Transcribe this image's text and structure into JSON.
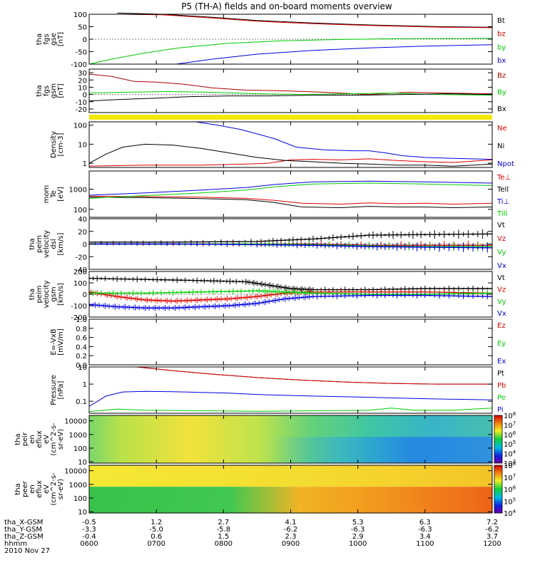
{
  "title": "P5 (TH-A) fields and on-board moments overview",
  "chart_data": [
    {
      "type": "line",
      "id": "fgs_gse",
      "ylabel": [
        "tha",
        "fgs",
        "gse",
        "[nT]"
      ],
      "ylim": [
        -100,
        100
      ],
      "yticks": [
        -100,
        -50,
        0,
        50,
        100
      ],
      "series": [
        {
          "name": "Bt",
          "color": "#000000",
          "x": [
            0.5,
            1.3,
            2.2,
            3.0,
            4.0,
            5.0,
            6.3,
            7.2
          ],
          "y": [
            105,
            100,
            88,
            75,
            65,
            57,
            50,
            48
          ]
        },
        {
          "name": "bz",
          "color": "#dd0000",
          "x": [
            0.5,
            1.3,
            2.2,
            3.0,
            4.0,
            5.0,
            6.3,
            7.2
          ],
          "y": [
            100,
            98,
            85,
            72,
            62,
            55,
            48,
            46
          ]
        },
        {
          "name": "by",
          "color": "#00cc00",
          "x": [
            0.0,
            0.4,
            1.0,
            1.6,
            2.4,
            3.4,
            4.5,
            5.5,
            7.2
          ],
          "y": [
            -100,
            -80,
            -55,
            -35,
            -18,
            -7,
            -1,
            2,
            3
          ]
        },
        {
          "name": "bx",
          "color": "#0000dd",
          "x": [
            1.55,
            2.2,
            3.0,
            4.0,
            5.0,
            6.0,
            7.2
          ],
          "y": [
            -100,
            -80,
            -60,
            -45,
            -35,
            -28,
            -22
          ]
        }
      ]
    },
    {
      "type": "line",
      "id": "fgs_gsm",
      "ylabel": [
        "tha",
        "fgs",
        "gsm",
        "[nT]"
      ],
      "ylim": [
        -25,
        35
      ],
      "yticks": [
        -20,
        -10,
        0,
        10,
        20,
        30
      ],
      "series": [
        {
          "name": "Bz",
          "color": "#aa0000",
          "x": [
            0,
            0.4,
            0.8,
            1.2,
            1.7,
            2.2,
            2.8,
            3.5,
            4.2,
            5.0,
            5.7,
            6.4,
            7.2
          ],
          "y": [
            28,
            25,
            18,
            17,
            14,
            9,
            6,
            5,
            3,
            0,
            3,
            2,
            1
          ]
        },
        {
          "name": "By",
          "color": "#00cc00",
          "x": [
            0,
            0.6,
            1.4,
            2.2,
            3.0,
            3.8,
            4.6,
            5.4,
            6.2,
            7.2
          ],
          "y": [
            2,
            3,
            4,
            3,
            1,
            0,
            1,
            2,
            0,
            -1
          ]
        },
        {
          "name": "Bx",
          "color": "#000000",
          "x": [
            0,
            0.5,
            1.2,
            1.8,
            2.5,
            3.2,
            4.0,
            4.8,
            5.6,
            6.4,
            7.2
          ],
          "y": [
            -9,
            -7,
            -5,
            -3,
            -2,
            -2,
            -1,
            -1,
            0,
            1,
            0
          ]
        }
      ]
    },
    {
      "type": "line",
      "id": "density",
      "ylabel": [
        "Density",
        "[cm-3]"
      ],
      "log": true,
      "ylim": [
        0.6,
        150
      ],
      "yticks": [
        1,
        10,
        100
      ],
      "series": [
        {
          "name": "Ne",
          "color": "#dd0000",
          "x": [
            0,
            1.0,
            2.0,
            2.8,
            3.2,
            3.6,
            4.0,
            4.5,
            5.0,
            5.5,
            6.0,
            6.5,
            7.2
          ],
          "y": [
            0.7,
            0.8,
            0.8,
            0.9,
            1.0,
            1.5,
            1.6,
            1.5,
            1.7,
            1.4,
            1.2,
            1.1,
            1.5
          ]
        },
        {
          "name": "Ni",
          "color": "#000000",
          "x": [
            0,
            0.3,
            0.6,
            1.0,
            1.5,
            2.0,
            2.5,
            3.0,
            3.5,
            4.0,
            4.5,
            5.0,
            5.5,
            6.0,
            6.5,
            7.2
          ],
          "y": [
            1,
            3,
            7,
            10,
            9,
            6,
            3.5,
            2,
            1.4,
            1.2,
            1.0,
            0.9,
            0.8,
            0.8,
            0.7,
            0.9
          ]
        },
        {
          "name": "Npot",
          "color": "#0000dd",
          "x": [
            1.9,
            2.3,
            2.7,
            3.0,
            3.3,
            3.7,
            4.2,
            4.7,
            5.0,
            5.3,
            5.6,
            6.0,
            6.5,
            7.2
          ],
          "y": [
            150,
            100,
            60,
            35,
            20,
            7,
            5,
            4.5,
            4.5,
            3.5,
            2.5,
            2,
            1.8,
            1.6
          ]
        }
      ]
    },
    {
      "type": "line",
      "id": "mom_temp",
      "ylabel": [
        "mom",
        "Te",
        "[eV]"
      ],
      "log": true,
      "ylim": [
        40,
        8000
      ],
      "yticks": [
        100,
        1000
      ],
      "series": [
        {
          "name": "Te⊥",
          "color": "#dd0000",
          "x": [
            0,
            1.0,
            2.0,
            2.8,
            3.3,
            3.8,
            4.5,
            5.0,
            5.5,
            6.0,
            6.5,
            7.2
          ],
          "y": [
            450,
            430,
            400,
            350,
            280,
            200,
            180,
            210,
            190,
            200,
            180,
            200
          ]
        },
        {
          "name": "Tell",
          "color": "#000000",
          "x": [
            0,
            1.0,
            2.0,
            2.8,
            3.3,
            3.8,
            4.5,
            5.0,
            5.5,
            6.0,
            6.5,
            7.2
          ],
          "y": [
            400,
            380,
            340,
            300,
            220,
            130,
            120,
            140,
            130,
            130,
            120,
            130
          ]
        },
        {
          "name": "Ti⊥",
          "color": "#0000dd",
          "x": [
            0,
            1.0,
            2.0,
            2.8,
            3.3,
            4.0,
            5.0,
            6.0,
            7.2
          ],
          "y": [
            500,
            650,
            900,
            1200,
            1700,
            2300,
            2500,
            2300,
            2000
          ]
        },
        {
          "name": "Till",
          "color": "#00cc00",
          "x": [
            0,
            1.0,
            2.0,
            2.8,
            3.3,
            4.0,
            5.0,
            6.0,
            7.2
          ],
          "y": [
            350,
            480,
            650,
            900,
            1300,
            1800,
            2000,
            1800,
            1500
          ]
        }
      ]
    },
    {
      "type": "line",
      "id": "peim_velocity_dsl",
      "ylabel": [
        "tha",
        "peim",
        "velocity",
        "dsl",
        "[km/s]"
      ],
      "ylim": [
        -40,
        40
      ],
      "yticks": [
        -40,
        -20,
        0,
        20,
        40
      ],
      "series": [
        {
          "name": "Vt",
          "color": "#000000",
          "x": [
            0,
            1.5,
            3.0,
            4.0,
            5.0,
            6.0,
            7.2
          ],
          "y": [
            3,
            3,
            4,
            8,
            14,
            15,
            16
          ]
        },
        {
          "name": "Vz",
          "color": "#dd0000",
          "x": [
            0,
            1.5,
            3.0,
            4.0,
            5.0,
            6.0,
            7.2
          ],
          "y": [
            0,
            0,
            0,
            0,
            -2,
            -2,
            -2
          ]
        },
        {
          "name": "Vy",
          "color": "#00cc00",
          "x": [
            0,
            1.5,
            3.0,
            4.0,
            5.0,
            6.0,
            7.2
          ],
          "y": [
            0,
            0,
            0,
            -1,
            -3,
            -4,
            -4
          ]
        },
        {
          "name": "Vx",
          "color": "#0000dd",
          "x": [
            0,
            1.5,
            3.0,
            4.0,
            5.0,
            6.0,
            7.2
          ],
          "y": [
            0,
            0,
            -1,
            -2,
            -4,
            -5,
            -6
          ]
        }
      ]
    },
    {
      "type": "line",
      "id": "peim_velocity_gsm",
      "ylabel": [
        "tha",
        "peim",
        "velocity",
        "gsm",
        "[km/s]"
      ],
      "ylim": [
        -200,
        200
      ],
      "yticks": [
        -200,
        -100,
        0,
        100,
        200
      ],
      "series": [
        {
          "name": "Vt",
          "color": "#000000",
          "x": [
            0,
            1.0,
            2.0,
            2.8,
            3.2,
            3.6,
            4.0,
            5.0,
            6.0,
            7.2
          ],
          "y": [
            140,
            130,
            120,
            110,
            80,
            50,
            40,
            40,
            50,
            50
          ]
        },
        {
          "name": "Vz",
          "color": "#dd0000",
          "x": [
            0,
            0.5,
            1.0,
            1.5,
            2.0,
            2.5,
            3.0,
            3.5,
            4.0,
            5.0,
            6.0,
            7.2
          ],
          "y": [
            20,
            -20,
            -50,
            -60,
            -50,
            -40,
            -20,
            10,
            20,
            20,
            20,
            10
          ]
        },
        {
          "name": "Vy",
          "color": "#00cc00",
          "x": [
            0,
            1.0,
            2.0,
            3.0,
            3.5,
            4.0,
            5.0,
            6.0,
            7.2
          ],
          "y": [
            10,
            10,
            20,
            30,
            20,
            10,
            0,
            0,
            10
          ]
        },
        {
          "name": "Vx",
          "color": "#0000dd",
          "x": [
            0,
            0.5,
            1.0,
            1.5,
            2.0,
            2.5,
            3.0,
            3.5,
            4.0,
            5.0,
            6.0,
            7.2
          ],
          "y": [
            -90,
            -110,
            -120,
            -120,
            -110,
            -100,
            -80,
            -40,
            -20,
            -10,
            -10,
            -20
          ]
        }
      ]
    },
    {
      "type": "line",
      "id": "exb",
      "ylabel": [
        "E=-VxB",
        "[mV/m]"
      ],
      "ylim": [
        0,
        1
      ],
      "yticks": [
        0.0,
        0.2,
        0.4,
        0.6,
        0.8,
        1.0
      ],
      "series": [
        {
          "name": "Ez",
          "color": "#dd0000",
          "x": [],
          "y": []
        },
        {
          "name": "Ey",
          "color": "#00cc00",
          "x": [],
          "y": []
        },
        {
          "name": "Ex",
          "color": "#0000dd",
          "x": [],
          "y": []
        }
      ]
    },
    {
      "type": "line",
      "id": "pressure",
      "ylabel": [
        "Pressure",
        "[nPa]"
      ],
      "log": true,
      "ylim": [
        0.02,
        10
      ],
      "yticks": [
        0.1,
        1.0,
        10.0
      ],
      "series": [
        {
          "name": "Pt",
          "color": "#000000",
          "x": [
            0.85,
            1.5,
            2.2,
            3.0,
            3.8,
            4.6,
            5.4,
            6.2,
            7.2
          ],
          "y": [
            10,
            6,
            3.8,
            2.4,
            1.7,
            1.3,
            1.1,
            1.0,
            1.0
          ]
        },
        {
          "name": "Pb",
          "color": "#dd0000",
          "x": [
            0.85,
            1.5,
            2.2,
            3.0,
            3.8,
            4.6,
            5.4,
            6.2,
            7.2
          ],
          "y": [
            10,
            6,
            3.8,
            2.4,
            1.7,
            1.3,
            1.1,
            1.0,
            1.0
          ]
        },
        {
          "name": "Pe",
          "color": "#00cc00",
          "x": [
            0,
            0.5,
            1.0,
            2.0,
            3.0,
            4.0,
            5.0,
            5.4,
            5.8,
            6.5,
            7.2
          ],
          "y": [
            0.025,
            0.035,
            0.03,
            0.028,
            0.026,
            0.028,
            0.03,
            0.04,
            0.03,
            0.03,
            0.04
          ]
        },
        {
          "name": "Pi",
          "color": "#0000dd",
          "x": [
            0,
            0.3,
            0.6,
            1.0,
            1.5,
            2.0,
            2.5,
            3.0,
            3.5,
            4.0,
            5.0,
            6.0,
            7.2
          ],
          "y": [
            0.05,
            0.2,
            0.35,
            0.38,
            0.36,
            0.33,
            0.3,
            0.25,
            0.22,
            0.2,
            0.17,
            0.14,
            0.12
          ]
        }
      ]
    },
    {
      "type": "heatmap",
      "id": "peir_en_eflux",
      "ylabel": [
        "tha",
        "peir",
        "en",
        "eflux",
        "eV",
        "(cm^2-s-",
        "sr-eV)"
      ],
      "log": true,
      "ylim": [
        8,
        25000
      ],
      "yticks": [
        10,
        100,
        1000,
        10000
      ],
      "colorbar": {
        "min_exp": 3,
        "max_exp": 8,
        "ticks": [
          "10^3",
          "10^4",
          "10^5",
          "10^6",
          "10^7",
          "10^8"
        ]
      }
    },
    {
      "type": "heatmap",
      "id": "peer_en_eflux",
      "ylabel": [
        "tha",
        "peer",
        "en",
        "eflux",
        "eV",
        "(cm^2-s-",
        "sr-eV)"
      ],
      "log": true,
      "ylim": [
        8,
        25000
      ],
      "yticks": [
        10,
        100,
        1000,
        10000
      ],
      "colorbar": {
        "min_exp": 4,
        "max_exp": 8,
        "ticks": [
          "10^4",
          "10^5",
          "10^6",
          "10^7",
          "10^8"
        ]
      }
    }
  ],
  "xaxis": {
    "xlim": [
      0,
      7.2
    ],
    "rows": [
      {
        "label": "tha_X-GSM",
        "values": [
          "-0.5",
          "1.2",
          "2.7",
          "4.1",
          "5.3",
          "6.3",
          "7.2"
        ]
      },
      {
        "label": "tha_Y-GSM",
        "values": [
          "-3.3",
          "-5.0",
          "-5.8",
          "-6.2",
          "-6.3",
          "-6.3",
          "-6.2"
        ]
      },
      {
        "label": "tha_Z-GSM",
        "values": [
          "-0.4",
          "0.6",
          "1.5",
          "2.3",
          "2.9",
          "3.4",
          "3.7"
        ]
      },
      {
        "label": "hhmm",
        "values": [
          "0600",
          "0700",
          "0800",
          "0900",
          "1000",
          "1100",
          "1200"
        ]
      }
    ],
    "date": "2010 Nov 27"
  }
}
